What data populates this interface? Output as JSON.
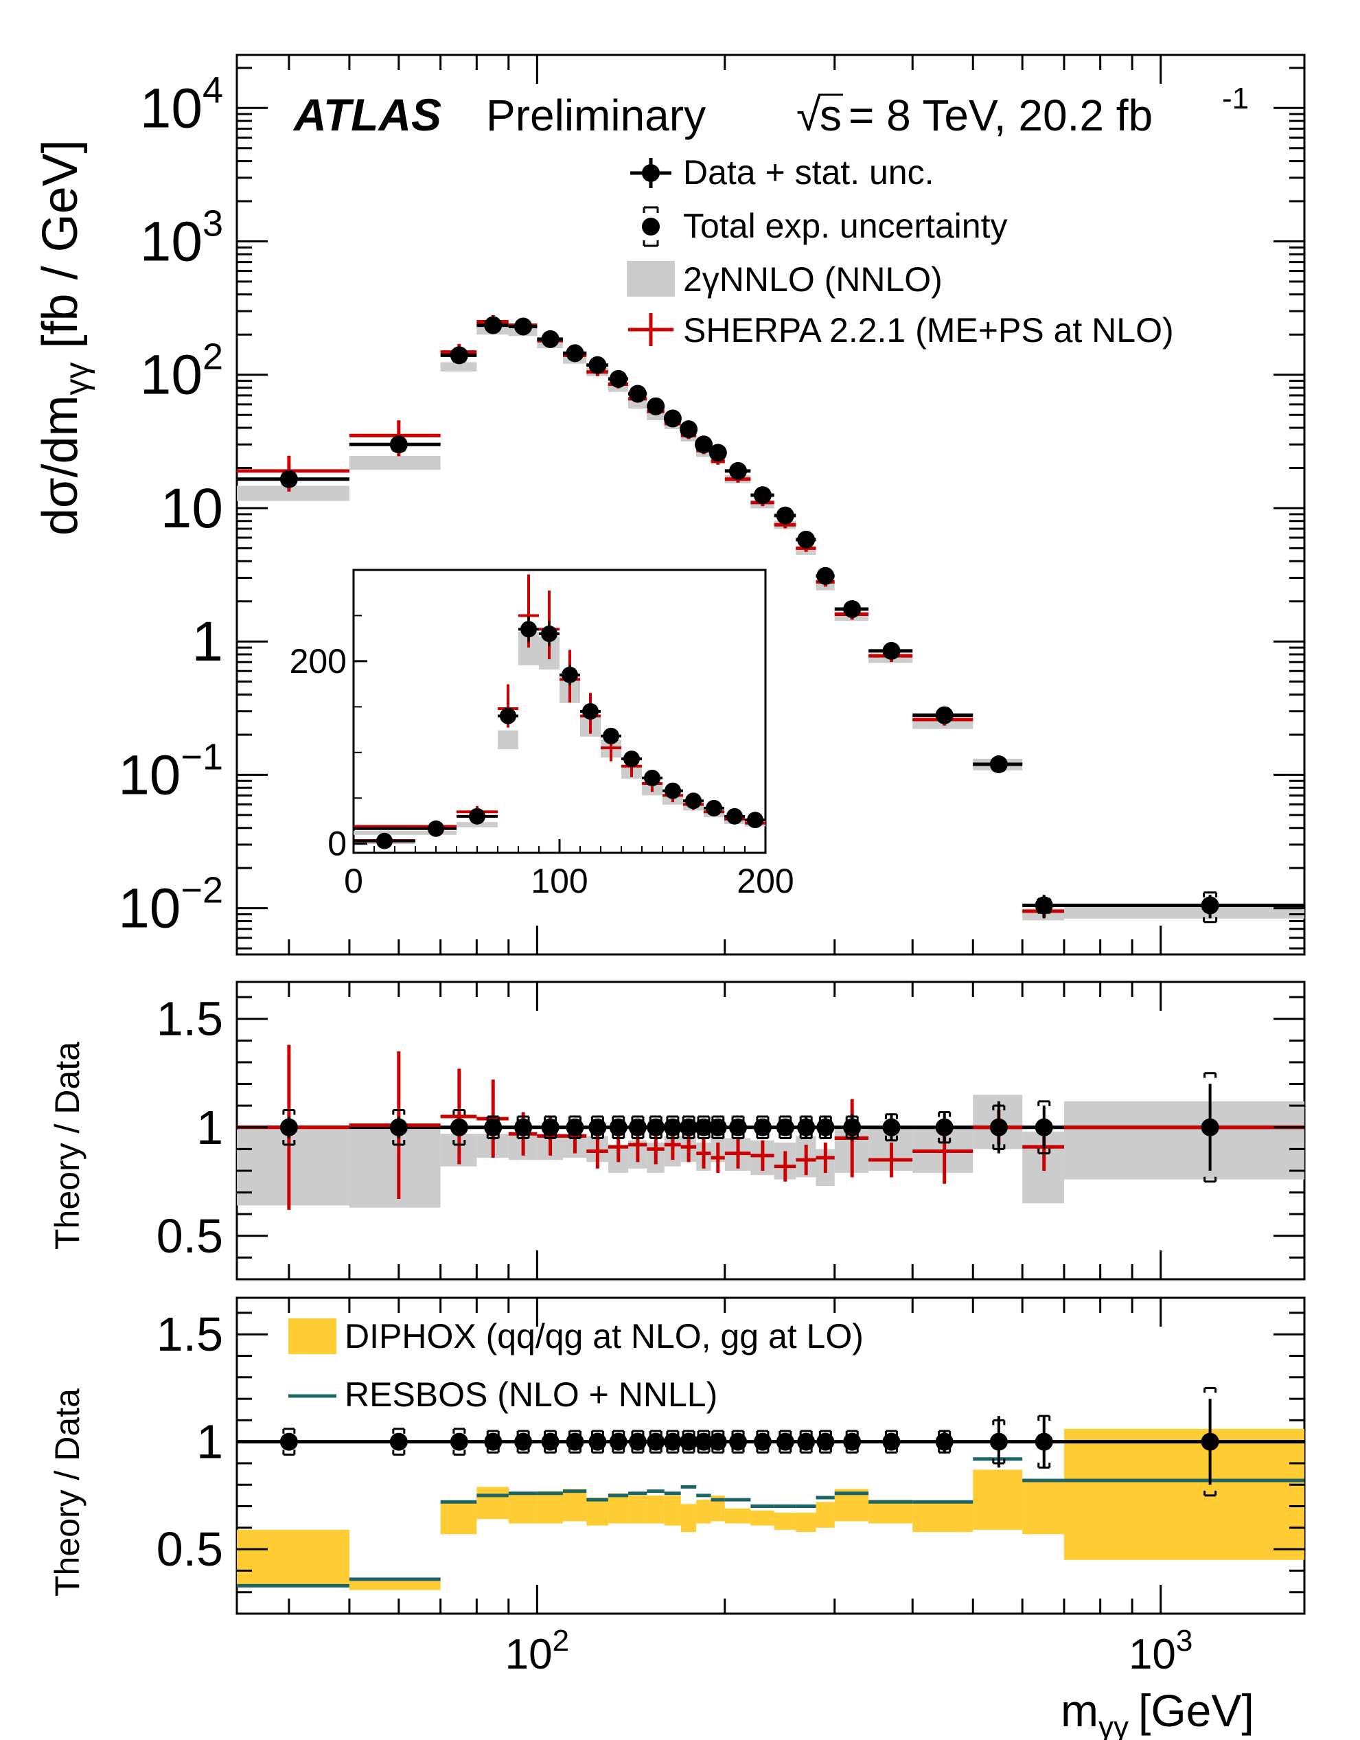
{
  "header": {
    "experiment": "ATLAS",
    "status": "Preliminary",
    "sqrt_s": "s",
    "energy": "= 8 TeV, 20.2 fb",
    "lumi_exp": "-1"
  },
  "axes": {
    "x_title_main": "m",
    "x_title_sub": "γγ",
    "x_title_unit": "[GeV]",
    "main_y_title_a": "dσ/dm",
    "main_y_title_sub": "γγ",
    "main_y_title_b": " [fb / GeV]",
    "ratio_y_title": "Theory / Data",
    "x_ticks": [
      {
        "value": 100,
        "base": "10",
        "exp": "2"
      },
      {
        "value": 1000,
        "base": "10",
        "exp": "3"
      }
    ],
    "main_y_ticks": [
      {
        "value": 10000,
        "base": "10",
        "exp": "4"
      },
      {
        "value": 1000,
        "base": "10",
        "exp": "3"
      },
      {
        "value": 100,
        "base": "10",
        "exp": "2"
      },
      {
        "value": 10,
        "base": "10",
        "exp": ""
      },
      {
        "value": 1,
        "base": "1",
        "exp": ""
      },
      {
        "value": 0.1,
        "base": "10",
        "exp": "−1"
      },
      {
        "value": 0.01,
        "base": "10",
        "exp": "−2"
      }
    ],
    "ratio_y_ticks": [
      {
        "value": 0.5,
        "label": "0.5"
      },
      {
        "value": 1,
        "label": "1"
      },
      {
        "value": 1.5,
        "label": "1.5"
      }
    ],
    "inset_x_ticks": [
      {
        "value": 0,
        "label": "0"
      },
      {
        "value": 100,
        "label": "100"
      },
      {
        "value": 200,
        "label": "200"
      }
    ],
    "inset_y_ticks": [
      {
        "value": 0,
        "label": "0"
      },
      {
        "value": 200,
        "label": "200"
      }
    ]
  },
  "legend_main": [
    {
      "key": "data",
      "label": "Data + stat. unc."
    },
    {
      "key": "syst",
      "label": "Total exp. uncertainty"
    },
    {
      "key": "nnlo",
      "label": "2γNNLO (NNLO)"
    },
    {
      "key": "sherpa",
      "label": "SHERPA 2.2.1 (ME+PS at NLO)"
    }
  ],
  "legend_lower": [
    {
      "key": "diphox",
      "label": "DIPHOX (qq/qg at NLO, gg at LO)"
    },
    {
      "key": "resbos",
      "label": "RESBOS (NLO + NNLL)"
    }
  ],
  "colors": {
    "data": "#000000",
    "sherpa": "#cc0000",
    "nnlo": "#cccccc",
    "diphox": "#ffcc33",
    "resbos": "#1a6666"
  },
  "chart_data": [
    {
      "type": "scatter",
      "panel": "main",
      "x_scale": "log",
      "y_scale": "log",
      "xlim": [
        33,
        1700
      ],
      "ylim": [
        0.0045,
        25000
      ],
      "xlabel": "mγγ [GeV]",
      "ylabel": "dσ/dmγγ [fb / GeV]",
      "bins": [
        [
          0,
          50
        ],
        [
          50,
          70
        ],
        [
          70,
          80
        ],
        [
          80,
          90
        ],
        [
          90,
          100
        ],
        [
          100,
          110
        ],
        [
          110,
          120
        ],
        [
          120,
          130
        ],
        [
          130,
          140
        ],
        [
          140,
          150
        ],
        [
          150,
          160
        ],
        [
          160,
          170
        ],
        [
          170,
          180
        ],
        [
          180,
          190
        ],
        [
          190,
          200
        ],
        [
          200,
          220
        ],
        [
          220,
          240
        ],
        [
          240,
          260
        ],
        [
          260,
          280
        ],
        [
          280,
          300
        ],
        [
          300,
          340
        ],
        [
          340,
          400
        ],
        [
          400,
          500
        ],
        [
          500,
          600
        ],
        [
          600,
          700
        ],
        [
          700,
          1700
        ]
      ],
      "points_x": [
        40,
        60,
        75,
        85,
        95,
        105,
        115,
        125,
        135,
        145,
        155,
        165,
        175,
        185,
        195,
        210,
        230,
        250,
        270,
        290,
        320,
        370,
        450,
        550,
        650,
        1200
      ],
      "series": [
        {
          "name": "Data + stat. unc.",
          "values": [
            16.5,
            30,
            140,
            235,
            230,
            185,
            145,
            118,
            93,
            72,
            58,
            47,
            39,
            30,
            26,
            19,
            12.5,
            8.8,
            5.8,
            3.1,
            1.75,
            0.85,
            0.28,
            0.12,
            0.0105,
            0.0105
          ],
          "stat_rel": [
            0.05,
            0.05,
            0.03,
            0.02,
            0.02,
            0.02,
            0.02,
            0.02,
            0.02,
            0.02,
            0.03,
            0.03,
            0.03,
            0.03,
            0.04,
            0.04,
            0.04,
            0.05,
            0.06,
            0.07,
            0.07,
            0.08,
            0.1,
            0.14,
            0.2,
            0.2
          ],
          "syst_rel": [
            0.1,
            0.1,
            0.1,
            0.06,
            0.06,
            0.05,
            0.05,
            0.05,
            0.05,
            0.05,
            0.05,
            0.05,
            0.05,
            0.05,
            0.05,
            0.05,
            0.05,
            0.05,
            0.05,
            0.06,
            0.06,
            0.06,
            0.07,
            0.1,
            0.12,
            0.25
          ]
        },
        {
          "name": "2γNNLO (NNLO)",
          "values": [
            13,
            22,
            115,
            215,
            210,
            170,
            130,
            105,
            80,
            60,
            49,
            42,
            34,
            26,
            23,
            16.5,
            10.7,
            7.5,
            4.8,
            2.6,
            1.55,
            0.75,
            0.24,
            0.12,
            0.009,
            0.0095
          ],
          "band_rel": [
            0.13,
            0.12,
            0.08,
            0.07,
            0.07,
            0.07,
            0.07,
            0.07,
            0.07,
            0.07,
            0.07,
            0.07,
            0.07,
            0.07,
            0.07,
            0.07,
            0.07,
            0.07,
            0.07,
            0.07,
            0.08,
            0.08,
            0.08,
            0.1,
            0.1,
            0.12
          ]
        },
        {
          "name": "SHERPA 2.2.1 (ME+PS at NLO)",
          "values": [
            19,
            35,
            148,
            250,
            235,
            180,
            140,
            105,
            85,
            66,
            53,
            43,
            35,
            27,
            22.5,
            16.5,
            11,
            7.5,
            5,
            2.8,
            1.6,
            0.78,
            0.26,
            0.12,
            0.0095,
            0.0105
          ],
          "stat_rel": [
            0.3,
            0.3,
            0.15,
            0.12,
            0.1,
            0.09,
            0.08,
            0.07,
            0.07,
            0.06,
            0.06,
            0.06,
            0.06,
            0.06,
            0.06,
            0.06,
            0.06,
            0.06,
            0.06,
            0.08,
            0.09,
            0.1,
            0.1,
            0.1,
            0.1,
            0.05
          ]
        }
      ]
    },
    {
      "type": "scatter",
      "panel": "inset",
      "x_scale": "linear",
      "y_scale": "linear",
      "xlim": [
        0,
        200
      ],
      "ylim": [
        -10,
        300
      ],
      "series": [
        {
          "name": "Data + stat. unc.",
          "x": [
            15,
            40,
            60,
            75,
            85,
            95,
            105,
            115,
            125,
            135,
            145,
            155,
            165,
            175,
            185,
            195
          ],
          "values": [
            3,
            16.5,
            30,
            140,
            235,
            230,
            185,
            145,
            118,
            93,
            72,
            58,
            47,
            39,
            30,
            26
          ]
        },
        {
          "name": "2γNNLO (NNLO)",
          "values": [
            2,
            13,
            22,
            115,
            215,
            210,
            170,
            130,
            105,
            80,
            60,
            49,
            42,
            34,
            26,
            23
          ]
        },
        {
          "name": "SHERPA 2.2.1 (ME+PS at NLO)",
          "values": [
            3.5,
            19,
            35,
            148,
            250,
            235,
            180,
            140,
            105,
            85,
            66,
            53,
            43,
            35,
            27,
            22.5
          ]
        }
      ]
    },
    {
      "type": "scatter",
      "panel": "ratio-nnlo-sherpa",
      "x_scale": "log",
      "ylim": [
        0.3,
        1.67
      ],
      "ylabel": "Theory / Data",
      "series": [
        {
          "name": "Data + stat. unc.",
          "values": [
            1,
            1,
            1,
            1,
            1,
            1,
            1,
            1,
            1,
            1,
            1,
            1,
            1,
            1,
            1,
            1,
            1,
            1,
            1,
            1,
            1,
            1,
            1,
            1,
            1,
            1
          ],
          "stat": [
            0.05,
            0.05,
            0.03,
            0.02,
            0.02,
            0.02,
            0.02,
            0.02,
            0.02,
            0.02,
            0.03,
            0.03,
            0.03,
            0.03,
            0.03,
            0.04,
            0.04,
            0.04,
            0.05,
            0.05,
            0.06,
            0.06,
            0.07,
            0.12,
            0.1,
            0.2
          ],
          "syst": [
            0.08,
            0.08,
            0.08,
            0.05,
            0.05,
            0.05,
            0.05,
            0.05,
            0.05,
            0.05,
            0.05,
            0.05,
            0.05,
            0.05,
            0.05,
            0.05,
            0.05,
            0.05,
            0.05,
            0.05,
            0.05,
            0.06,
            0.07,
            0.1,
            0.12,
            0.25
          ]
        },
        {
          "name": "2γNNLO (NNLO)",
          "lo": [
            0.64,
            0.63,
            0.82,
            0.86,
            0.85,
            0.85,
            0.86,
            0.84,
            0.79,
            0.81,
            0.79,
            0.82,
            0.84,
            0.8,
            0.84,
            0.8,
            0.78,
            0.76,
            0.77,
            0.73,
            0.79,
            0.8,
            0.79,
            0.9,
            0.65,
            0.76
          ],
          "hi": [
            0.99,
            0.99,
            0.97,
            0.97,
            0.97,
            0.97,
            0.97,
            0.96,
            0.92,
            0.94,
            0.93,
            0.96,
            0.96,
            0.93,
            0.96,
            0.95,
            0.94,
            0.93,
            0.96,
            0.9,
            0.99,
            1.0,
            1.0,
            1.15,
            0.98,
            1.12
          ]
        },
        {
          "name": "SHERPA 2.2.1 (ME+PS at NLO)",
          "values": [
            1.0,
            1.01,
            1.05,
            1.04,
            0.97,
            0.96,
            0.96,
            0.89,
            0.91,
            0.92,
            0.9,
            0.92,
            0.91,
            0.88,
            0.86,
            0.88,
            0.87,
            0.82,
            0.85,
            0.86,
            0.95,
            0.85,
            0.89,
            1.0,
            0.91,
            1.0
          ],
          "err": [
            0.38,
            0.34,
            0.22,
            0.18,
            0.1,
            0.09,
            0.08,
            0.08,
            0.07,
            0.08,
            0.07,
            0.07,
            0.07,
            0.07,
            0.07,
            0.07,
            0.07,
            0.07,
            0.07,
            0.07,
            0.18,
            0.08,
            0.15,
            0.08,
            0.11,
            0.03
          ]
        }
      ]
    },
    {
      "type": "scatter",
      "panel": "ratio-diphox-resbos",
      "x_scale": "log",
      "ylim": [
        0.2,
        1.67
      ],
      "xlabel": "mγγ [GeV]",
      "ylabel": "Theory / Data",
      "series": [
        {
          "name": "Data + stat. unc.",
          "values": [
            1,
            1,
            1,
            1,
            1,
            1,
            1,
            1,
            1,
            1,
            1,
            1,
            1,
            1,
            1,
            1,
            1,
            1,
            1,
            1,
            1,
            1,
            1,
            1,
            1,
            1
          ],
          "stat": [
            0.03,
            0.03,
            0.03,
            0.02,
            0.02,
            0.02,
            0.02,
            0.02,
            0.02,
            0.02,
            0.02,
            0.02,
            0.02,
            0.02,
            0.03,
            0.03,
            0.03,
            0.03,
            0.03,
            0.03,
            0.03,
            0.04,
            0.05,
            0.12,
            0.12,
            0.2
          ],
          "syst": [
            0.06,
            0.06,
            0.06,
            0.05,
            0.05,
            0.05,
            0.05,
            0.05,
            0.05,
            0.05,
            0.05,
            0.05,
            0.05,
            0.05,
            0.05,
            0.05,
            0.05,
            0.05,
            0.05,
            0.05,
            0.05,
            0.05,
            0.05,
            0.1,
            0.12,
            0.25
          ]
        },
        {
          "name": "DIPHOX (qq/qg at NLO, gg at LO)",
          "lo": [
            0.33,
            0.31,
            0.57,
            0.64,
            0.62,
            0.62,
            0.63,
            0.61,
            0.62,
            0.62,
            0.62,
            0.61,
            0.58,
            0.62,
            0.63,
            0.62,
            0.61,
            0.59,
            0.58,
            0.6,
            0.63,
            0.62,
            0.58,
            0.59,
            0.57,
            0.45
          ],
          "hi": [
            0.59,
            0.36,
            0.72,
            0.79,
            0.76,
            0.77,
            0.78,
            0.74,
            0.76,
            0.75,
            0.75,
            0.75,
            0.71,
            0.73,
            0.75,
            0.69,
            0.68,
            0.67,
            0.67,
            0.72,
            0.78,
            0.73,
            0.72,
            0.87,
            0.82,
            1.06
          ]
        },
        {
          "name": "RESBOS (NLO + NNLL)",
          "values": [
            0.33,
            0.36,
            0.72,
            0.75,
            0.76,
            0.76,
            0.77,
            0.73,
            0.75,
            0.76,
            0.77,
            0.76,
            0.79,
            0.75,
            0.73,
            0.73,
            0.7,
            0.7,
            0.7,
            0.74,
            0.76,
            0.72,
            0.72,
            0.92,
            0.82,
            0.82
          ]
        }
      ]
    }
  ]
}
